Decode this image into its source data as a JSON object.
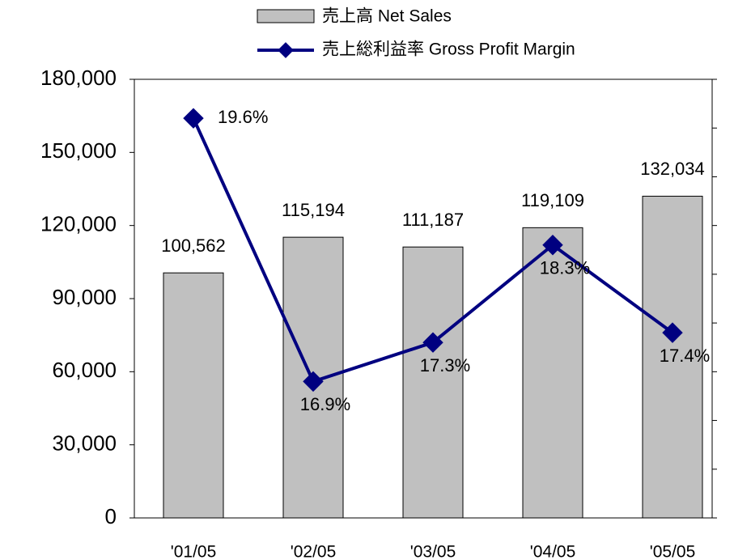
{
  "chart_data": {
    "type": "bar_line",
    "categories": [
      "'01/05",
      "'02/05",
      "'03/05",
      "'04/05",
      "'05/05"
    ],
    "series": [
      {
        "name": "売上高  Net Sales",
        "type": "bar",
        "color": "#c0c0c0",
        "values": [
          100562,
          115194,
          111187,
          119109,
          132034
        ],
        "value_labels": [
          "100,562",
          "115,194",
          "111,187",
          "119,109",
          "132,034"
        ]
      },
      {
        "name": "売上総利益率 Gross Profit Margin",
        "type": "line",
        "axis": "y2",
        "color": "#000080",
        "values": [
          19.6,
          16.9,
          17.3,
          18.3,
          17.4
        ],
        "value_labels": [
          "19.6%",
          "16.9%",
          "17.3%",
          "18.3%",
          "17.4%"
        ]
      }
    ],
    "ylim": [
      0,
      180000
    ],
    "yticks": [
      0,
      {
        "value": 30000,
        "label": "30,000"
      },
      {
        "value": 60000,
        "label": "60,000"
      },
      {
        "value": 90000,
        "label": "90,000"
      },
      {
        "value": 120000,
        "label": "120,000"
      },
      {
        "value": 150000,
        "label": "150,000"
      },
      {
        "value": 180000,
        "label": "180,000"
      }
    ],
    "y2lim": [
      15.5,
      20
    ],
    "y2ticks": [
      15.5,
      16,
      16.5,
      17,
      17.5,
      18,
      18.5,
      19,
      19.5,
      20
    ],
    "legend": "top"
  }
}
